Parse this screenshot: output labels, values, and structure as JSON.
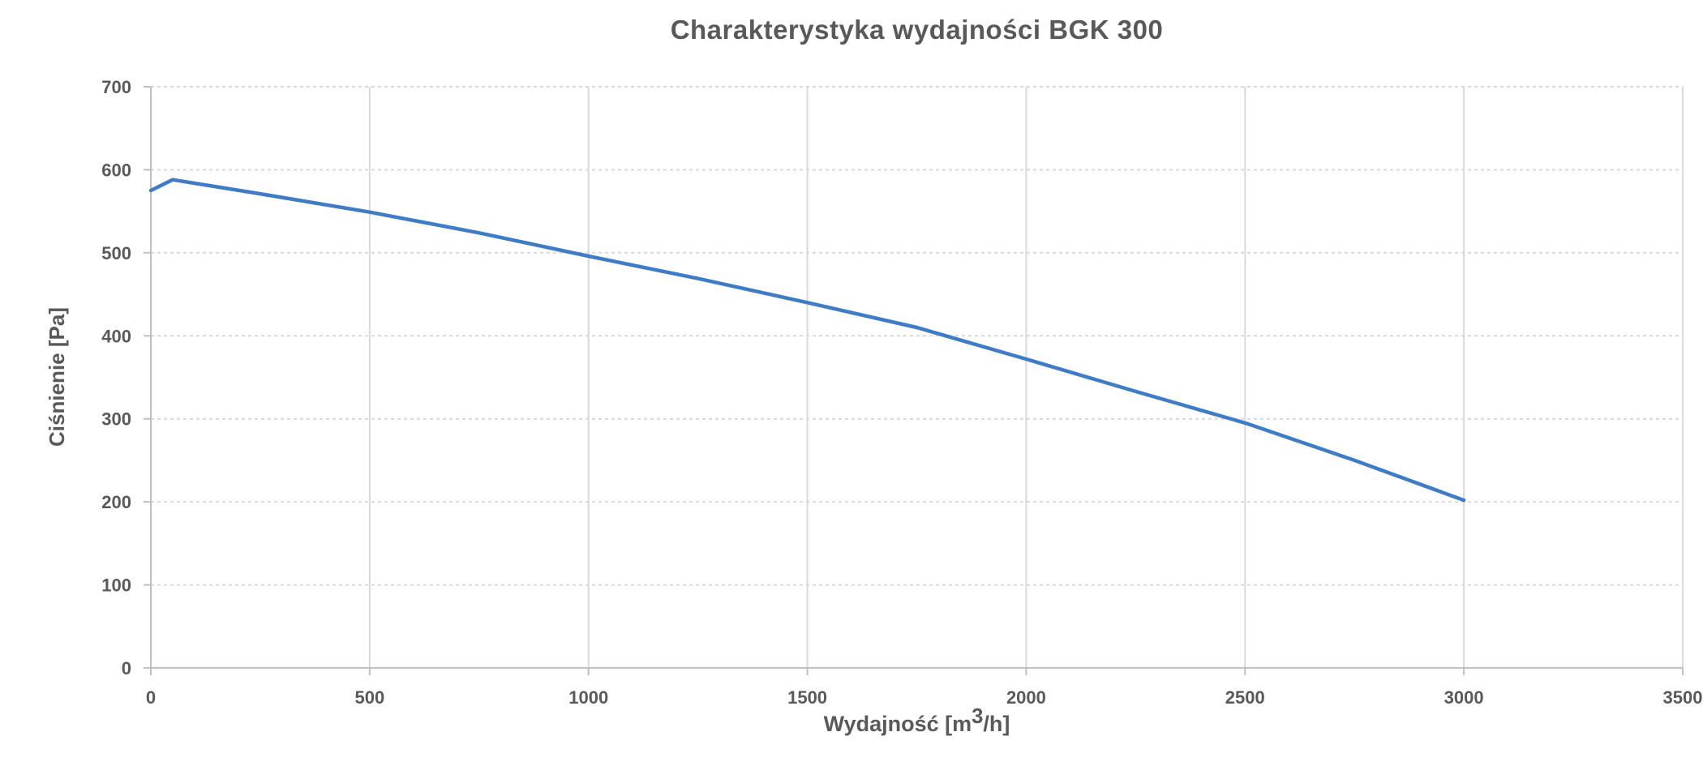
{
  "title": {
    "text": "Charakterystyka wydajności BGK 300"
  },
  "axes": {
    "y_title": "Ciśnienie [Pa]",
    "x_title_base": "Wydajność [m",
    "x_title_sup": "3",
    "x_title_end": "/h]"
  },
  "colors": {
    "line": "#3E7CC7",
    "gridline": "#D9D9D9",
    "axis_line": "#BFBFBF",
    "text": "#595959",
    "background": "#FFFFFF"
  },
  "chart_data": {
    "type": "line",
    "title": "Charakterystyka wydajności BGK 300",
    "xlabel": "Wydajność [m³/h]",
    "ylabel": "Ciśnienie [Pa]",
    "xlim": [
      0,
      3500
    ],
    "ylim": [
      0,
      700
    ],
    "xticks": [
      0,
      500,
      1000,
      1500,
      2000,
      2500,
      3000,
      3500
    ],
    "yticks": [
      0,
      100,
      200,
      300,
      400,
      500,
      600,
      700
    ],
    "grid": "both",
    "gridstyle": {
      "horizontal": "dashed",
      "vertical": "solid"
    },
    "legend": "none",
    "series": [
      {
        "x": [
          0,
          50,
          250,
          500,
          750,
          1000,
          1250,
          1500,
          1750,
          2000,
          2250,
          2500,
          2750,
          3000
        ],
        "y": [
          575,
          588,
          571,
          549,
          524,
          496,
          469,
          440,
          410,
          372,
          333,
          295,
          250,
          202
        ],
        "color": "#3E7CC7"
      }
    ]
  }
}
